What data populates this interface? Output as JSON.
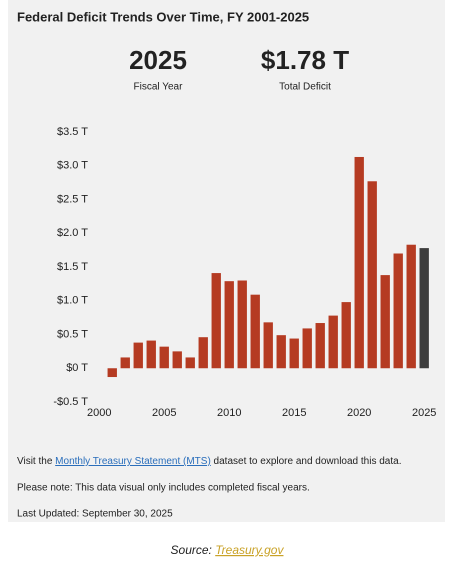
{
  "chart_data": {
    "type": "bar",
    "title": "Federal Deficit Trends Over Time, FY 2001-2025",
    "kpis": [
      {
        "value": "2025",
        "label": "Fiscal Year"
      },
      {
        "value": "$1.78 T",
        "label": "Total Deficit"
      }
    ],
    "x": [
      2001,
      2002,
      2003,
      2004,
      2005,
      2006,
      2007,
      2008,
      2009,
      2010,
      2011,
      2012,
      2013,
      2014,
      2015,
      2016,
      2017,
      2018,
      2019,
      2020,
      2021,
      2022,
      2023,
      2024,
      2025
    ],
    "values": [
      -0.13,
      0.16,
      0.38,
      0.41,
      0.32,
      0.25,
      0.16,
      0.46,
      1.41,
      1.29,
      1.3,
      1.09,
      0.68,
      0.49,
      0.44,
      0.59,
      0.67,
      0.78,
      0.98,
      3.13,
      2.77,
      1.38,
      1.7,
      1.83,
      1.78
    ],
    "colors": [
      "#b53b22",
      "#b53b22",
      "#b53b22",
      "#b53b22",
      "#b53b22",
      "#b53b22",
      "#b53b22",
      "#b53b22",
      "#b53b22",
      "#b53b22",
      "#b53b22",
      "#b53b22",
      "#b53b22",
      "#b53b22",
      "#b53b22",
      "#b53b22",
      "#b53b22",
      "#b53b22",
      "#b53b22",
      "#b53b22",
      "#b53b22",
      "#b53b22",
      "#b53b22",
      "#b53b22",
      "#3d3d3d"
    ],
    "ylim": [
      -0.5,
      3.5
    ],
    "yticks": [
      {
        "value": -0.5,
        "label": "-$0.5 T"
      },
      {
        "value": 0,
        "label": "$0 T"
      },
      {
        "value": 0.5,
        "label": "$0.5 T"
      },
      {
        "value": 1,
        "label": "$1.0 T"
      },
      {
        "value": 1.5,
        "label": "$1.5 T"
      },
      {
        "value": 2,
        "label": "$2.0 T"
      },
      {
        "value": 2.5,
        "label": "$2.5 T"
      },
      {
        "value": 3,
        "label": "$3.0 T"
      },
      {
        "value": 3.5,
        "label": "$3.5 T"
      }
    ],
    "xlim": [
      1999.75,
      2025.6
    ],
    "xticks": [
      2000,
      2005,
      2010,
      2015,
      2020,
      2025
    ]
  },
  "footer": {
    "visit_prefix": "Visit the ",
    "link": "Monthly Treasury Statement (MTS)",
    "visit_suffix": " dataset to explore and download this data.",
    "note": "Please note: This data visual only includes completed fiscal years.",
    "updated": "Last Updated: September 30, 2025"
  },
  "source": {
    "prefix": "Source: ",
    "link": "Treasury.gov"
  }
}
